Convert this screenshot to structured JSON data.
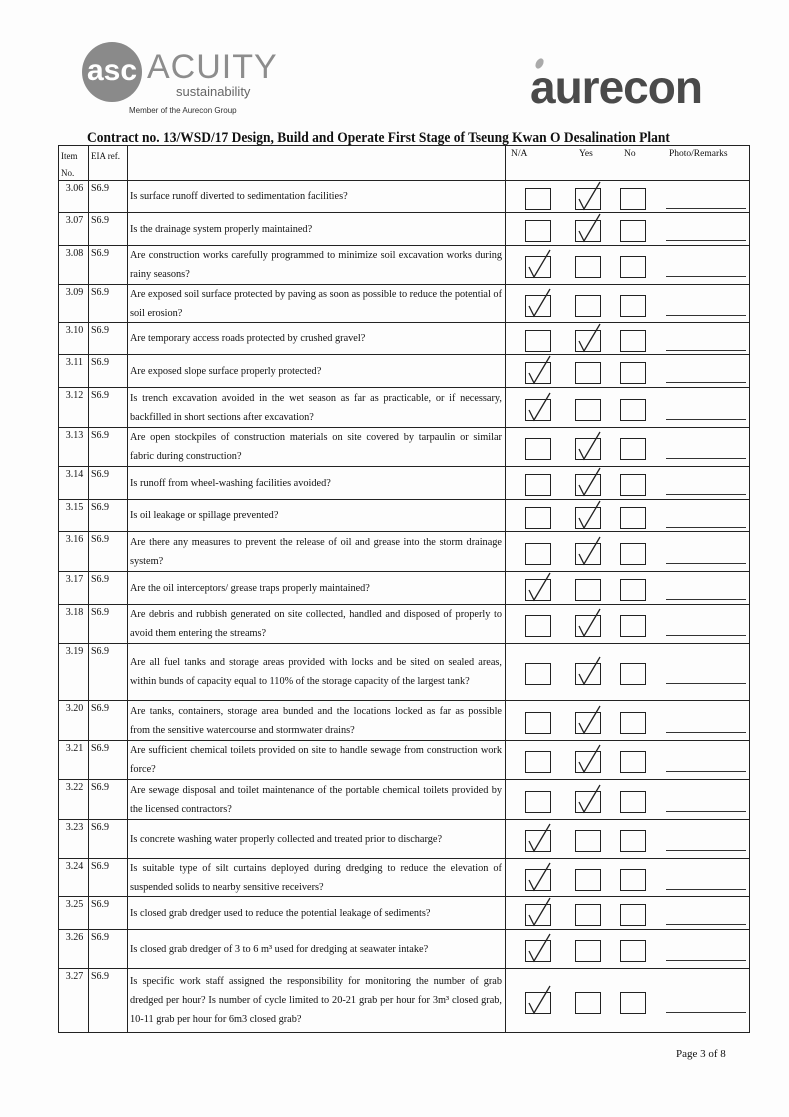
{
  "header": {
    "left_logo": {
      "monogram": "asc",
      "name": "ACUITY",
      "tagline": "sustainability",
      "member_text": "Member of the Aurecon Group"
    },
    "right_logo": {
      "name": "aurecon"
    },
    "title": "Contract no.  13/WSD/17 Design, Build and Operate First Stage of Tseung Kwan O Desalination Plant"
  },
  "table": {
    "columns": {
      "item": "Item No.",
      "eia": "EIA ref.",
      "na": "N/A",
      "yes": "Yes",
      "no": "No",
      "remarks": "Photo/Remarks"
    },
    "rows": [
      {
        "item": "3.06",
        "eia": "S6.9",
        "question": "Is surface runoff diverted to sedimentation facilities?",
        "answer": "Yes"
      },
      {
        "item": "3.07",
        "eia": "S6.9",
        "question": "Is the drainage system properly maintained?",
        "answer": "Yes"
      },
      {
        "item": "3.08",
        "eia": "S6.9",
        "question": "Are construction works carefully programmed to minimize soil excavation works during rainy seasons?",
        "answer": "N/A"
      },
      {
        "item": "3.09",
        "eia": "S6.9",
        "question": "Are exposed soil surface protected by paving as soon as possible to reduce the potential of soil erosion?",
        "answer": "N/A"
      },
      {
        "item": "3.10",
        "eia": "S6.9",
        "question": "Are temporary access roads protected by crushed gravel?",
        "answer": "Yes"
      },
      {
        "item": "3.11",
        "eia": "S6.9",
        "question": "Are exposed slope surface properly protected?",
        "answer": "N/A"
      },
      {
        "item": "3.12",
        "eia": "S6.9",
        "question": "Is trench excavation avoided in the wet season as far as practicable, or if necessary, backfilled in short sections after excavation?",
        "answer": "N/A"
      },
      {
        "item": "3.13",
        "eia": "S6.9",
        "question": "Are open stockpiles of construction materials on site covered by tarpaulin or similar fabric during construction?",
        "answer": "Yes"
      },
      {
        "item": "3.14",
        "eia": "S6.9",
        "question": "Is runoff from wheel-washing facilities avoided?",
        "answer": "Yes"
      },
      {
        "item": "3.15",
        "eia": "S6.9",
        "question": "Is oil leakage or spillage prevented?",
        "answer": "Yes"
      },
      {
        "item": "3.16",
        "eia": "S6.9",
        "question": "Are there any measures to prevent the release of oil and grease into the storm drainage system?",
        "answer": "Yes"
      },
      {
        "item": "3.17",
        "eia": "S6.9",
        "question": "Are the oil interceptors/ grease traps properly maintained?",
        "answer": "N/A"
      },
      {
        "item": "3.18",
        "eia": "S6.9",
        "question": "Are debris and rubbish generated on site collected, handled and disposed of properly to avoid them entering the streams?",
        "answer": "Yes"
      },
      {
        "item": "3.19",
        "eia": "S6.9",
        "question": "Are all fuel tanks and storage areas provided with locks and be sited on sealed areas, within bunds of capacity equal to 110% of the storage capacity of the largest tank?",
        "answer": "Yes"
      },
      {
        "item": "3.20",
        "eia": "S6.9",
        "question": "Are tanks, containers, storage area bunded and the locations locked as far as possible from the sensitive watercourse and stormwater drains?",
        "answer": "Yes"
      },
      {
        "item": "3.21",
        "eia": "S6.9",
        "question": "Are sufficient chemical toilets provided on site to handle sewage from construction work force?",
        "answer": "Yes"
      },
      {
        "item": "3.22",
        "eia": "S6.9",
        "question": "Are sewage disposal and toilet maintenance of the portable chemical toilets provided by the licensed contractors?",
        "answer": "Yes"
      },
      {
        "item": "3.23",
        "eia": "S6.9",
        "question": "Is concrete washing water properly collected and treated prior to discharge?",
        "answer": "N/A"
      },
      {
        "item": "3.24",
        "eia": "S6.9",
        "question": "Is suitable type of silt curtains deployed during dredging to reduce the elevation of suspended solids to nearby sensitive receivers?",
        "answer": "N/A"
      },
      {
        "item": "3.25",
        "eia": "S6.9",
        "question": "Is closed grab dredger used to reduce the potential leakage of sediments?",
        "answer": "N/A"
      },
      {
        "item": "3.26",
        "eia": "S6.9",
        "question": "Is closed grab dredger of 3 to 6 m³ used for dredging at seawater intake?",
        "answer": "N/A"
      },
      {
        "item": "3.27",
        "eia": "S6.9",
        "question": "Is specific work staff assigned the responsibility for monitoring the number of grab dredged per hour? Is number of cycle limited to 20-21 grab per hour for 3m³ closed grab, 10-11 grab per hour for 6m3 closed grab?",
        "answer": "N/A"
      }
    ]
  },
  "footer": {
    "page_label": "Page 3 of 8"
  }
}
